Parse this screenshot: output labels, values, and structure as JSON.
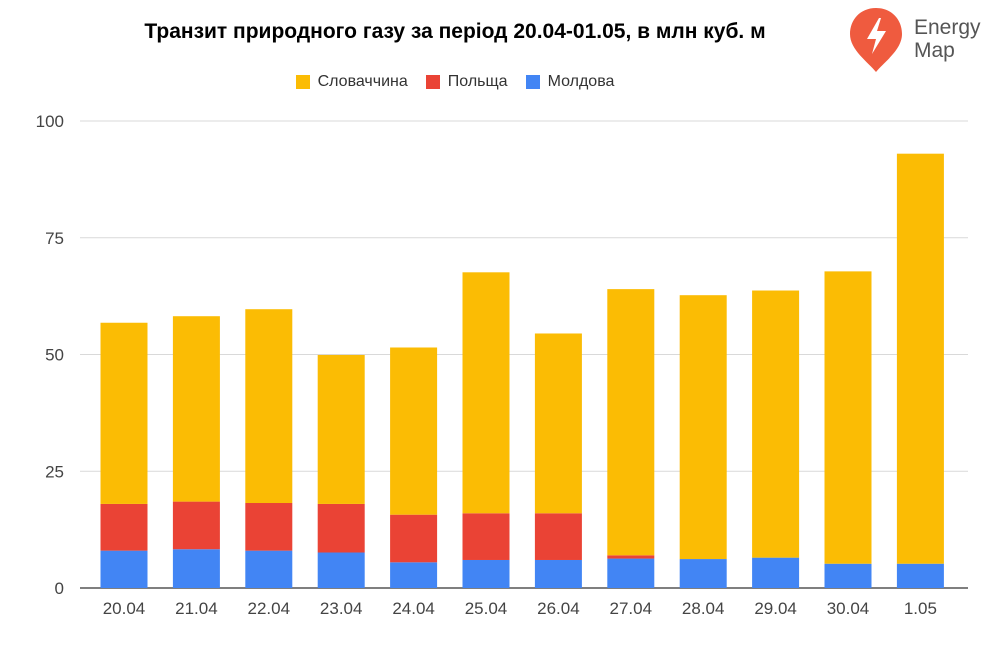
{
  "chart_data": {
    "type": "bar",
    "stacked": true,
    "title": "Транзит природного газу за період 20.04-01.05, в млн куб. м",
    "categories": [
      "20.04",
      "21.04",
      "22.04",
      "23.04",
      "24.04",
      "25.04",
      "26.04",
      "27.04",
      "28.04",
      "29.04",
      "30.04",
      "1.05"
    ],
    "series": [
      {
        "name": "Молдова",
        "color": "#4285F4",
        "values": [
          8,
          8.3,
          8,
          7.6,
          5.5,
          6,
          6,
          6.3,
          6.2,
          6.5,
          5.2,
          5.2
        ]
      },
      {
        "name": "Польща",
        "color": "#EA4335",
        "values": [
          10,
          10.2,
          10.2,
          10.4,
          10.2,
          10,
          10,
          0.7,
          0,
          0,
          0,
          0
        ]
      },
      {
        "name": "Словаччина",
        "color": "#FBBC04",
        "values": [
          38.8,
          39.7,
          41.5,
          31.9,
          35.8,
          51.6,
          38.5,
          57,
          56.5,
          57.2,
          62.6,
          87.8
        ]
      }
    ],
    "legend_order": [
      "Словаччина",
      "Польща",
      "Молдова"
    ],
    "ylim": [
      0,
      100
    ],
    "yticks": [
      0,
      25,
      50,
      75,
      100
    ],
    "grid": true,
    "legend_position": "top-center"
  },
  "logo": {
    "line1": "Energy",
    "line2": "Map",
    "color": "#EF5B3F",
    "icon": "lightning-bolt-icon"
  }
}
